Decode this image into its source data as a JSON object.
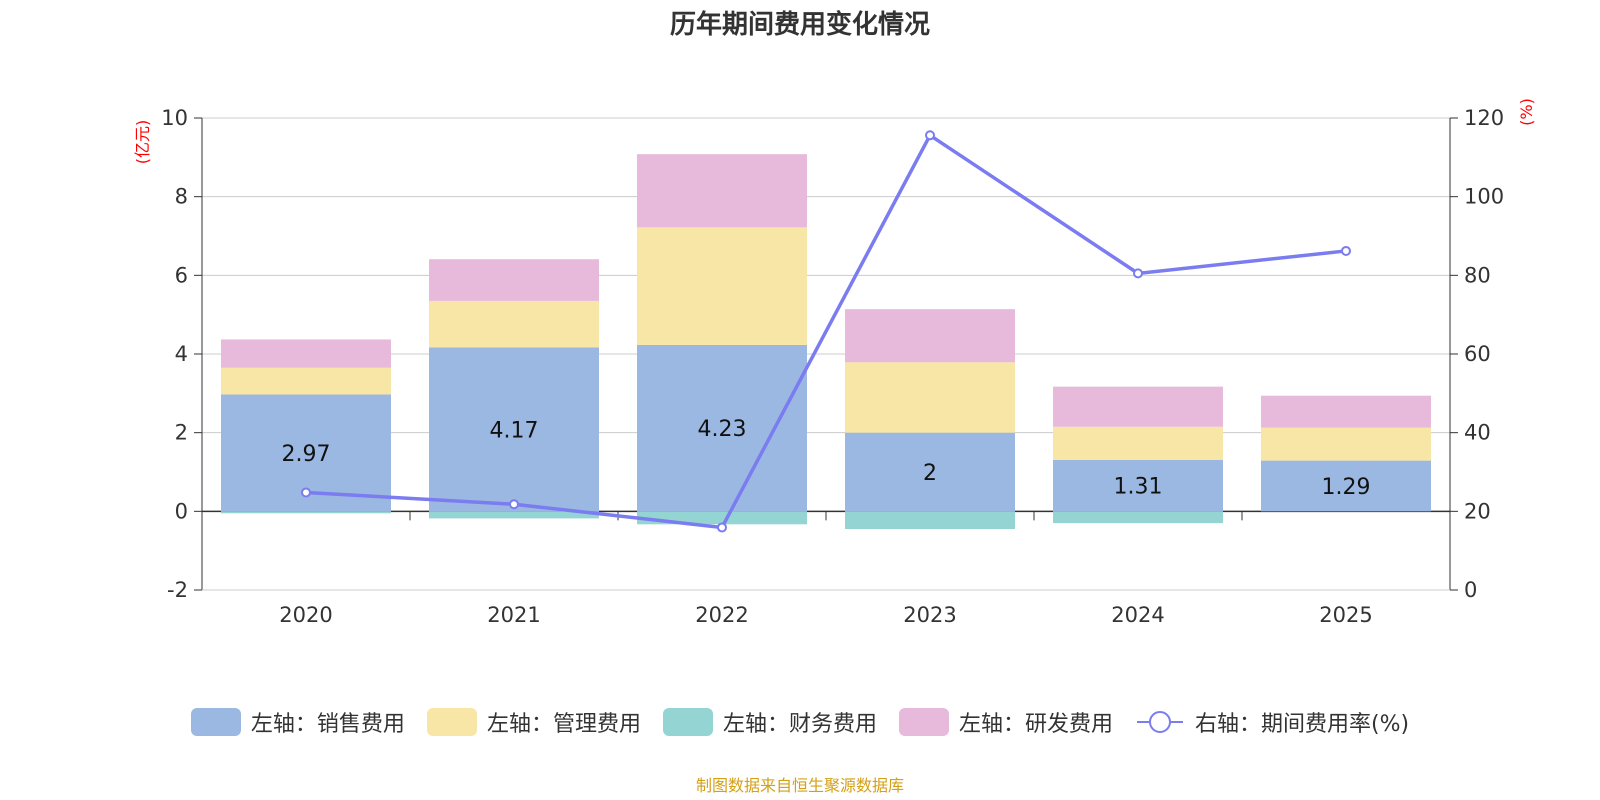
{
  "chart_data": {
    "type": "bar",
    "title": "历年期间费用变化情况",
    "categories": [
      "2020",
      "2021",
      "2022",
      "2023",
      "2024",
      "2025"
    ],
    "series": [
      {
        "name": "左轴：销售费用",
        "kind": "stacked-bar",
        "axis": "left",
        "color": "#9bb8e2",
        "values": [
          2.97,
          4.17,
          4.23,
          2,
          1.31,
          1.29
        ]
      },
      {
        "name": "左轴：管理费用",
        "kind": "stacked-bar",
        "axis": "left",
        "color": "#f8e6a7",
        "values": [
          0.68,
          1.18,
          2.99,
          1.79,
          0.84,
          0.84
        ]
      },
      {
        "name": "左轴：财务费用",
        "kind": "stacked-bar",
        "axis": "left",
        "color": "#94d4d3",
        "values": [
          -0.05,
          -0.18,
          -0.33,
          -0.45,
          -0.3,
          0
        ]
      },
      {
        "name": "左轴：研发费用",
        "kind": "stacked-bar",
        "axis": "left",
        "color": "#e7b9da",
        "values": [
          0.72,
          1.06,
          1.86,
          1.35,
          1.02,
          0.81
        ]
      },
      {
        "name": "右轴：期间费用率(%)",
        "kind": "line",
        "axis": "right",
        "color": "#7a7cf0",
        "values": [
          24.8,
          21.8,
          15.9,
          115.6,
          80.5,
          86.2
        ]
      }
    ],
    "data_labels": [
      "2.97",
      "4.17",
      "4.23",
      "2",
      "1.31",
      "1.29"
    ],
    "left_axis": {
      "unit": "(亿元)",
      "min": -2,
      "max": 10,
      "ticks": [
        "-2",
        "0",
        "2",
        "4",
        "6",
        "8",
        "10"
      ]
    },
    "right_axis": {
      "unit": "(%)",
      "min": 0,
      "max": 120,
      "ticks": [
        "0",
        "20",
        "40",
        "60",
        "80",
        "100",
        "120"
      ]
    },
    "grid": true,
    "legend_position": "bottom"
  },
  "legend": [
    {
      "label": "左轴：销售费用",
      "color": "#9bb8e2",
      "kind": "bar"
    },
    {
      "label": "左轴：管理费用",
      "color": "#f8e6a7",
      "kind": "bar"
    },
    {
      "label": "左轴：财务费用",
      "color": "#94d4d3",
      "kind": "bar"
    },
    {
      "label": "左轴：研发费用",
      "color": "#e7b9da",
      "kind": "bar"
    },
    {
      "label": "右轴：期间费用率(%)",
      "color": "#7a7cf0",
      "kind": "line"
    }
  ],
  "source_note": "制图数据来自恒生聚源数据库"
}
